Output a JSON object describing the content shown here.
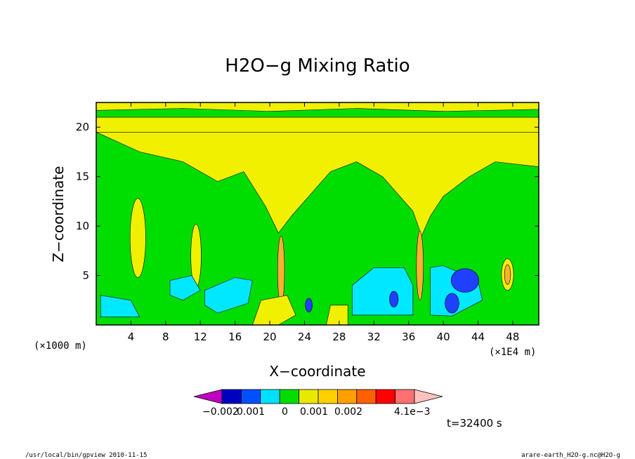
{
  "chart_data": {
    "type": "heatmap",
    "title": "H2O−g Mixing Ratio",
    "xlabel": "X−coordinate",
    "ylabel": "Z−coordinate",
    "x_unit_left": "(×1000 m)",
    "x_unit_right": "(×1E4 m)",
    "xlim": [
      0,
      51
    ],
    "ylim": [
      0,
      22.5
    ],
    "x_ticks": [
      "4",
      "8",
      "12",
      "16",
      "20",
      "24",
      "28",
      "32",
      "36",
      "40",
      "44",
      "48"
    ],
    "y_ticks": [
      "5",
      "10",
      "15",
      "20"
    ],
    "colorbar": {
      "colors": [
        "#c000c0",
        "#0000c0",
        "#0050ff",
        "#00e0ff",
        "#00dd00",
        "#e8e800",
        "#ffd000",
        "#ffa000",
        "#ff6000",
        "#ff0000",
        "#ff7070",
        "#ffc0c0"
      ],
      "tick_labels": [
        "−0.002",
        "0.001",
        "0",
        "0.001",
        "0.002",
        "4.1e−3"
      ]
    },
    "colors": {
      "background": "#00dd00",
      "yellow": "#f0f000",
      "cyan": "#00e8ff",
      "blue": "#2040ff",
      "orange": "#ffb030"
    },
    "time_label": "t=32400 s"
  },
  "footer": {
    "left": "/usr/local/bin/gpview  2010-11-15",
    "right": "arare-earth_H2O-g.nc@H2O-g"
  }
}
